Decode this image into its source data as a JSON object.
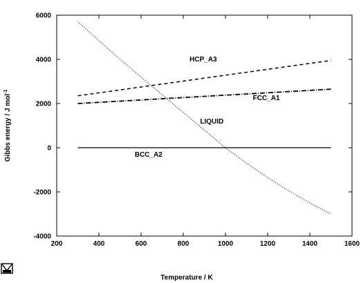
{
  "chart_data": {
    "type": "line",
    "title": "",
    "xlabel": "Temperature / K",
    "ylabel": "Gibbs energy / J mol",
    "ylabel_sup": "-1",
    "xlim": [
      200,
      1600
    ],
    "ylim": [
      -4000,
      6000
    ],
    "xticks": [
      200,
      400,
      600,
      800,
      1000,
      1200,
      1400,
      1600
    ],
    "yticks": [
      -4000,
      -2000,
      0,
      2000,
      4000,
      6000
    ],
    "grid": false,
    "legend": "none",
    "series": [
      {
        "name": "BCC_A2",
        "style": "solid",
        "x": [
          300,
          1500
        ],
        "y": [
          0,
          0
        ]
      },
      {
        "name": "FCC_A1",
        "style": "dash-dot",
        "x": [
          300,
          1500
        ],
        "y": [
          2000,
          2650
        ]
      },
      {
        "name": "HCP_A3",
        "style": "dashed",
        "x": [
          300,
          1500
        ],
        "y": [
          2350,
          3950
        ]
      },
      {
        "name": "LIQUID",
        "style": "dotted",
        "x": [
          300,
          400,
          500,
          600,
          700,
          800,
          900,
          1000,
          1100,
          1200,
          1300,
          1400,
          1500
        ],
        "y": [
          5700,
          4850,
          4000,
          3200,
          2400,
          1600,
          800,
          0,
          -700,
          -1350,
          -1950,
          -2500,
          -3000
        ]
      }
    ],
    "labels": [
      {
        "text": "HCP_A3",
        "x": 830,
        "y": 3900
      },
      {
        "text": "FCC_A1",
        "x": 1130,
        "y": 2150
      },
      {
        "text": "LIQUID",
        "x": 880,
        "y": 1100
      },
      {
        "text": "BCC_A2",
        "x": 570,
        "y": -400
      }
    ]
  }
}
